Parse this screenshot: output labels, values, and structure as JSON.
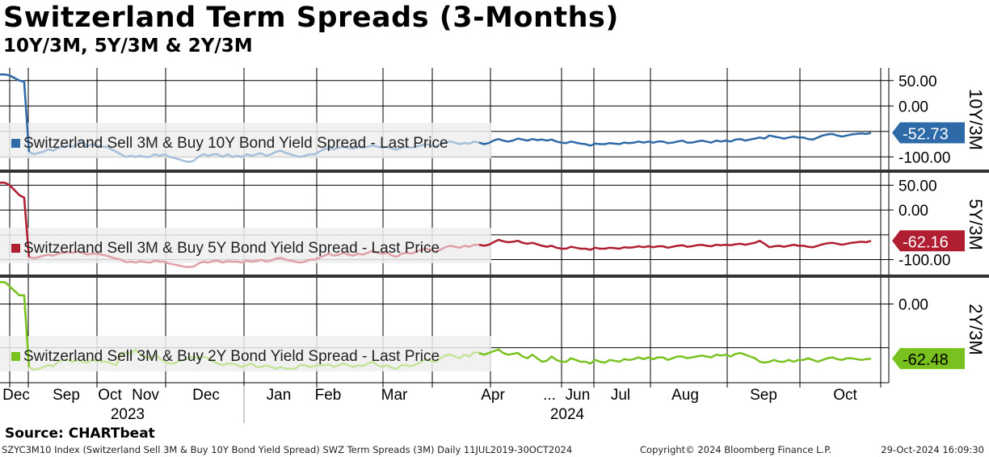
{
  "header": {
    "title": "Switzerland Term Spreads (3-Months)",
    "subtitle": "10Y/3M, 5Y/3M & 2Y/3M"
  },
  "footer": {
    "source": "Source: CHARTbeat",
    "index_info": "SZYC3M10 Index (Switzerland Sell 3M & Buy 10Y Bond Yield Spread) SWZ Term Spreads (3M)  Daily 11JUL2019-30OCT2024",
    "copyright": "Copyright© 2024 Bloomberg Finance L.P.",
    "timestamp": "29-Oct-2024 16:09:30"
  },
  "colors": {
    "blue": "#2e6aa8",
    "blue_faded": "#a6c0dc",
    "red": "#b01e32",
    "red_faded": "#dfa0a8",
    "green": "#79c11f",
    "green_faded": "#c4e49a"
  },
  "chart_data": [
    {
      "type": "line",
      "panel_label": "10Y/3M",
      "legend": "Switzerland Sell 3M & Buy 10Y Bond Yield Spread - Last Price",
      "last_value": "-52.73",
      "ylim": [
        -125,
        75
      ],
      "yticks": [
        50,
        0,
        -100
      ],
      "ytick_labels": [
        "50.00",
        "0.00",
        "-100.00"
      ],
      "ytick_partial": {
        "value": -50,
        "label": "-50.00"
      },
      "values": [
        62,
        62,
        60,
        55,
        50,
        48,
        -90,
        -95,
        -92,
        -90,
        -85,
        -88,
        -82,
        -80,
        -78,
        -80,
        -75,
        -70,
        -80,
        -75,
        -78,
        -80,
        -80,
        -85,
        -90,
        -95,
        -100,
        -98,
        -100,
        -98,
        -100,
        -100,
        -95,
        -98,
        -95,
        -100,
        -102,
        -105,
        -108,
        -110,
        -108,
        -100,
        -95,
        -98,
        -95,
        -95,
        -100,
        -95,
        -100,
        -98,
        -100,
        -95,
        -98,
        -95,
        -93,
        -98,
        -95,
        -90,
        -88,
        -92,
        -95,
        -98,
        -100,
        -98,
        -95,
        -95,
        -90,
        -85,
        -82,
        -85,
        -82,
        -80,
        -82,
        -84,
        -80,
        -82,
        -80,
        -78,
        -80,
        -82,
        -80,
        -84,
        -86,
        -82,
        -80,
        -82,
        -80,
        -78,
        -75,
        -78,
        -80,
        -75,
        -72,
        -70,
        -72,
        -75,
        -73,
        -74,
        -70,
        -72,
        -75,
        -73,
        -68,
        -65,
        -68,
        -70,
        -68,
        -64,
        -66,
        -68,
        -65,
        -67,
        -66,
        -68,
        -66,
        -70,
        -72,
        -73,
        -70,
        -72,
        -74,
        -75,
        -78,
        -74,
        -75,
        -75,
        -73,
        -74,
        -75,
        -72,
        -73,
        -72,
        -70,
        -72,
        -70,
        -72,
        -70,
        -70,
        -73,
        -72,
        -70,
        -68,
        -72,
        -72,
        -70,
        -68,
        -70,
        -72,
        -68,
        -70,
        -68,
        -70,
        -66,
        -65,
        -68,
        -66,
        -64,
        -62,
        -64,
        -58,
        -60,
        -62,
        -64,
        -62,
        -60,
        -62,
        -62,
        -65,
        -66,
        -62,
        -58,
        -56,
        -55,
        -58,
        -60,
        -58,
        -56,
        -55,
        -54,
        -55,
        -52.73
      ]
    },
    {
      "type": "line",
      "panel_label": "5Y/3M",
      "legend": "Switzerland Sell 3M & Buy 5Y Bond Yield Spread - Last Price",
      "last_value": "-62.16",
      "ylim": [
        -130,
        75
      ],
      "yticks": [
        50,
        0,
        -100
      ],
      "ytick_labels": [
        "50.00",
        "0.00",
        "-100.00"
      ],
      "ytick_partial": {
        "value": -50,
        "label": "-50.00"
      },
      "values": [
        55,
        55,
        50,
        40,
        30,
        25,
        -95,
        -97,
        -95,
        -92,
        -90,
        -92,
        -88,
        -86,
        -85,
        -86,
        -84,
        -86,
        -90,
        -88,
        -88,
        -90,
        -92,
        -95,
        -98,
        -100,
        -105,
        -104,
        -106,
        -103,
        -105,
        -106,
        -102,
        -104,
        -104,
        -108,
        -110,
        -112,
        -114,
        -115,
        -114,
        -108,
        -104,
        -106,
        -103,
        -102,
        -106,
        -103,
        -104,
        -104,
        -106,
        -102,
        -104,
        -103,
        -100,
        -104,
        -102,
        -98,
        -96,
        -100,
        -102,
        -104,
        -106,
        -104,
        -100,
        -100,
        -96,
        -92,
        -88,
        -92,
        -90,
        -86,
        -90,
        -92,
        -88,
        -90,
        -86,
        -82,
        -86,
        -88,
        -86,
        -92,
        -94,
        -88,
        -86,
        -88,
        -84,
        -80,
        -78,
        -80,
        -84,
        -80,
        -75,
        -72,
        -74,
        -76,
        -72,
        -74,
        -70,
        -70,
        -72,
        -70,
        -65,
        -60,
        -63,
        -65,
        -64,
        -62,
        -66,
        -68,
        -66,
        -69,
        -72,
        -74,
        -72,
        -76,
        -78,
        -78,
        -74,
        -76,
        -78,
        -78,
        -80,
        -76,
        -78,
        -78,
        -76,
        -77,
        -78,
        -75,
        -76,
        -75,
        -73,
        -75,
        -73,
        -75,
        -73,
        -73,
        -76,
        -74,
        -72,
        -71,
        -74,
        -73,
        -71,
        -70,
        -72,
        -73,
        -70,
        -71,
        -70,
        -71,
        -69,
        -68,
        -70,
        -68,
        -66,
        -62,
        -68,
        -75,
        -73,
        -72,
        -74,
        -72,
        -70,
        -72,
        -72,
        -74,
        -75,
        -72,
        -69,
        -67,
        -66,
        -68,
        -70,
        -68,
        -66,
        -65,
        -64,
        -65,
        -62.16
      ]
    },
    {
      "type": "line",
      "panel_label": "2Y/3M",
      "legend": "Switzerland Sell 3M & Buy 2Y Bond Yield Spread - Last Price",
      "last_value": "-62.48",
      "ylim": [
        -90,
        30
      ],
      "yticks": [
        0
      ],
      "ytick_labels": [
        "0.00"
      ],
      "ytick_partial": {
        "value": -50,
        "label": "-50.00"
      },
      "values": [
        25,
        25,
        20,
        15,
        10,
        10,
        -72,
        -75,
        -74,
        -72,
        -70,
        -71,
        -66,
        -64,
        -64,
        -66,
        -64,
        -66,
        -67,
        -64,
        -65,
        -66,
        -66,
        -68,
        -70,
        -58,
        -55,
        -57,
        -52,
        -58,
        -60,
        -62,
        -58,
        -62,
        -66,
        -68,
        -68,
        -65,
        -64,
        -62,
        -60,
        -62,
        -60,
        -62,
        -66,
        -68,
        -70,
        -68,
        -68,
        -70,
        -72,
        -70,
        -68,
        -72,
        -72,
        -70,
        -72,
        -74,
        -72,
        -74,
        -74,
        -74,
        -70,
        -70,
        -72,
        -71,
        -70,
        -70,
        -69,
        -72,
        -70,
        -68,
        -70,
        -72,
        -70,
        -71,
        -68,
        -66,
        -70,
        -72,
        -70,
        -73,
        -74,
        -70,
        -70,
        -71,
        -69,
        -66,
        -63,
        -65,
        -66,
        -62,
        -59,
        -58,
        -60,
        -62,
        -58,
        -60,
        -55,
        -56,
        -58,
        -56,
        -54,
        -52,
        -56,
        -58,
        -57,
        -56,
        -60,
        -62,
        -58,
        -62,
        -66,
        -65,
        -60,
        -64,
        -66,
        -66,
        -62,
        -64,
        -66,
        -66,
        -68,
        -64,
        -66,
        -67,
        -64,
        -65,
        -66,
        -63,
        -64,
        -63,
        -61,
        -63,
        -61,
        -63,
        -61,
        -61,
        -64,
        -62,
        -60,
        -60,
        -62,
        -61,
        -60,
        -59,
        -60,
        -61,
        -58,
        -59,
        -58,
        -60,
        -57,
        -56,
        -58,
        -60,
        -62,
        -66,
        -67,
        -66,
        -64,
        -66,
        -66,
        -64,
        -66,
        -64,
        -64,
        -62,
        -64,
        -66,
        -64,
        -62,
        -61,
        -63,
        -64,
        -62,
        -62,
        -63,
        -64,
        -63,
        -62.48
      ]
    }
  ],
  "x_axis": {
    "month_labels": [
      "Dec",
      "Sep",
      "Oct",
      "Nov",
      "Dec",
      "Jan",
      "Feb",
      "Mar",
      "Apr",
      "...",
      "Jun",
      "Jul",
      "Aug",
      "Sep",
      "Oct"
    ],
    "year_labels": [
      "2023",
      "2024"
    ]
  }
}
